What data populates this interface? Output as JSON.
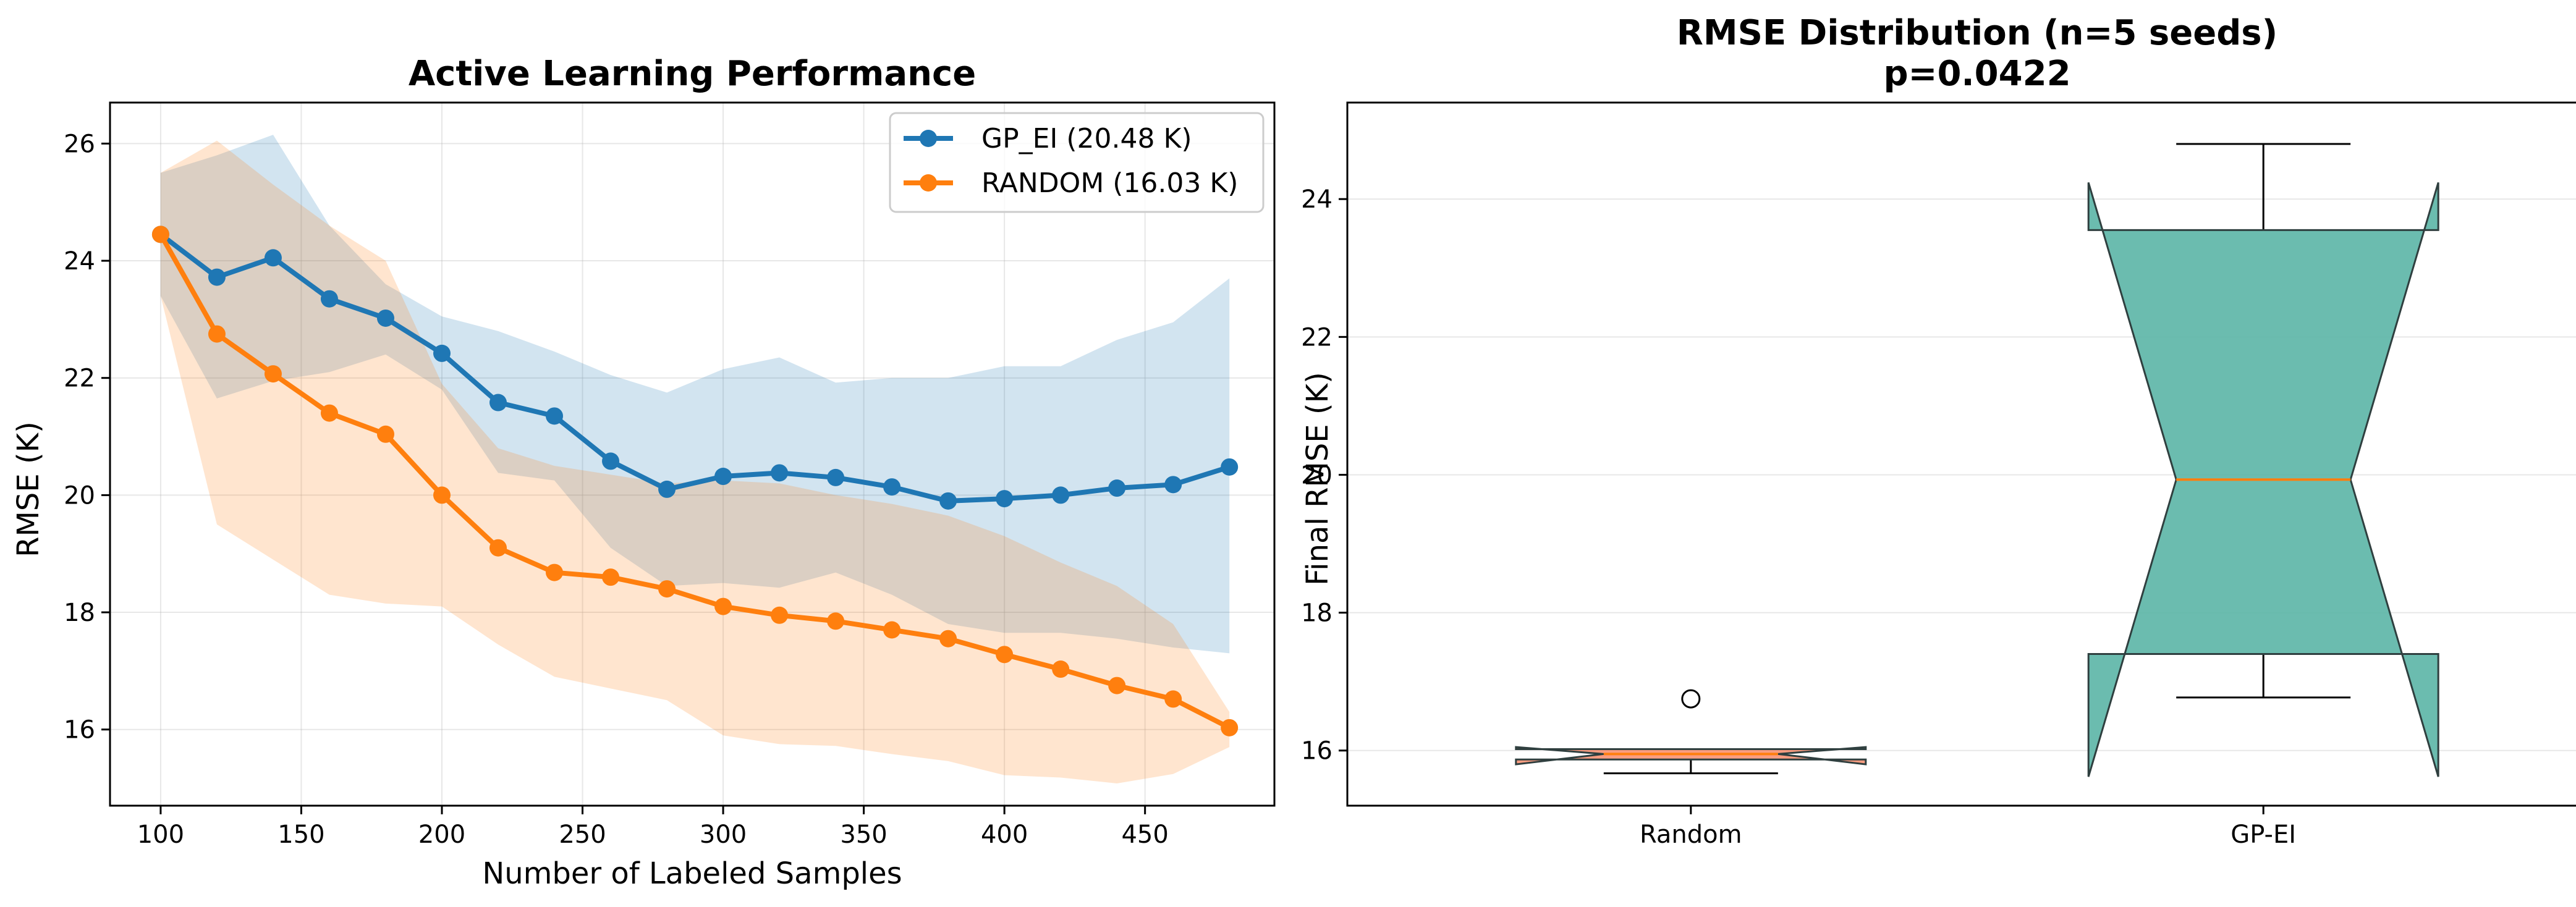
{
  "chart_data": [
    {
      "type": "line",
      "title": "Active Learning Performance",
      "xlabel": "Number of Labeled Samples",
      "ylabel": "RMSE (K)",
      "xlim": [
        82,
        496
      ],
      "ylim": [
        14.7,
        26.7
      ],
      "xticks": [
        100,
        150,
        200,
        250,
        300,
        350,
        400,
        450
      ],
      "yticks": [
        16,
        18,
        20,
        22,
        24,
        26
      ],
      "grid": true,
      "legend_position": "top-right",
      "x": [
        100,
        120,
        140,
        160,
        180,
        200,
        220,
        240,
        260,
        280,
        300,
        320,
        340,
        360,
        380,
        400,
        420,
        440,
        460,
        480
      ],
      "series": [
        {
          "name": "GP_EI (20.48 K)",
          "color": "#1f77b4",
          "band_color": "#1f77b4",
          "values": [
            24.45,
            23.72,
            24.05,
            23.35,
            23.02,
            22.42,
            21.58,
            21.35,
            20.58,
            20.1,
            20.32,
            20.38,
            20.3,
            20.14,
            19.9,
            19.94,
            20.0,
            20.12,
            20.18,
            20.48
          ],
          "upper": [
            25.5,
            25.8,
            26.15,
            24.6,
            23.6,
            23.05,
            22.8,
            22.45,
            22.05,
            21.75,
            22.15,
            22.35,
            21.92,
            22.0,
            22.0,
            22.2,
            22.2,
            22.65,
            22.95,
            23.7
          ],
          "lower": [
            23.4,
            21.65,
            21.95,
            22.1,
            22.4,
            21.8,
            20.38,
            20.25,
            19.1,
            18.45,
            18.5,
            18.42,
            18.68,
            18.3,
            17.8,
            17.65,
            17.65,
            17.55,
            17.4,
            17.3
          ]
        },
        {
          "name": "RANDOM (16.03 K)",
          "color": "#ff7f0e",
          "band_color": "#ff7f0e",
          "values": [
            24.45,
            22.75,
            22.07,
            21.4,
            21.04,
            20.0,
            19.1,
            18.68,
            18.6,
            18.4,
            18.1,
            17.95,
            17.85,
            17.7,
            17.55,
            17.28,
            17.03,
            16.75,
            16.52,
            16.03
          ],
          "upper": [
            25.5,
            26.05,
            25.3,
            24.6,
            24.0,
            21.9,
            20.8,
            20.5,
            20.35,
            20.2,
            20.25,
            20.2,
            20.0,
            19.85,
            19.65,
            19.3,
            18.85,
            18.45,
            17.8,
            16.3
          ],
          "lower": [
            23.4,
            19.5,
            18.9,
            18.3,
            18.15,
            18.1,
            17.45,
            16.9,
            16.7,
            16.5,
            15.9,
            15.75,
            15.72,
            15.58,
            15.46,
            15.22,
            15.18,
            15.08,
            15.24,
            15.7
          ]
        }
      ]
    },
    {
      "type": "box",
      "title": "RMSE Distribution (n=5 seeds)",
      "subtitle": "p=0.0422",
      "xlabel": "",
      "ylabel": "Final RMSE (K)",
      "ylim": [
        15.2,
        25.4
      ],
      "yticks": [
        16,
        18,
        20,
        22,
        24
      ],
      "grid": true,
      "notched": true,
      "boxes": [
        {
          "label": "Random",
          "color": "#fa9273",
          "min": 15.67,
          "q1": 15.87,
          "median": 15.95,
          "q3": 16.02,
          "max": 16.02,
          "notch_low": 15.8,
          "notch_high": 16.05,
          "outliers": [
            16.75
          ]
        },
        {
          "label": "GP-EI",
          "color": "#5bb5a6",
          "min": 16.77,
          "q1": 17.4,
          "median": 19.93,
          "q3": 23.55,
          "max": 24.8,
          "notch_low": 15.62,
          "notch_high": 24.24,
          "outliers": []
        }
      ]
    }
  ]
}
